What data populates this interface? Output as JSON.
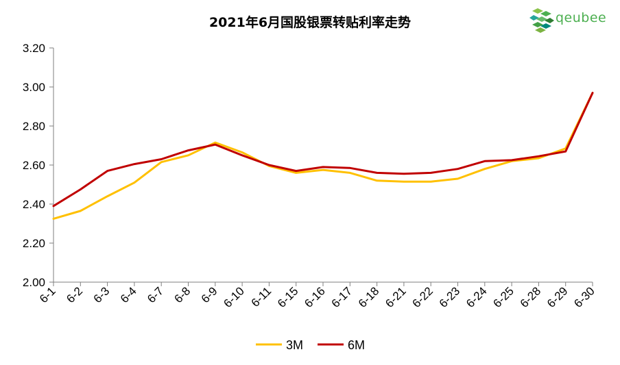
{
  "chart_data": {
    "type": "line",
    "title": "2021年6月国股银票转贴利率走势",
    "xlabel": "",
    "ylabel": "",
    "ylim": [
      2.0,
      3.2
    ],
    "yticks": [
      "2.00",
      "2.20",
      "2.40",
      "2.60",
      "2.80",
      "3.00",
      "3.20"
    ],
    "grid": false,
    "legend_position": "bottom",
    "categories": [
      "6-1",
      "6-2",
      "6-3",
      "6-4",
      "6-7",
      "6-8",
      "6-9",
      "6-10",
      "6-11",
      "6-15",
      "6-16",
      "6-17",
      "6-18",
      "6-21",
      "6-22",
      "6-23",
      "6-24",
      "6-25",
      "6-28",
      "6-29",
      "6-30"
    ],
    "series": [
      {
        "name": "3M",
        "color": "#FFC000",
        "values": [
          2.325,
          2.365,
          2.44,
          2.51,
          2.615,
          2.65,
          2.715,
          2.665,
          2.595,
          2.56,
          2.575,
          2.56,
          2.52,
          2.515,
          2.515,
          2.53,
          2.58,
          2.62,
          2.635,
          2.685,
          2.97
        ]
      },
      {
        "name": "6M",
        "color": "#C00000",
        "values": [
          2.39,
          2.475,
          2.57,
          2.605,
          2.63,
          2.675,
          2.705,
          2.65,
          2.6,
          2.57,
          2.59,
          2.585,
          2.56,
          2.555,
          2.56,
          2.58,
          2.62,
          2.625,
          2.645,
          2.67,
          2.97
        ]
      }
    ]
  },
  "logo": {
    "text": "qeubee",
    "icon": "cube-cluster-icon",
    "color": "#4CAF50"
  }
}
